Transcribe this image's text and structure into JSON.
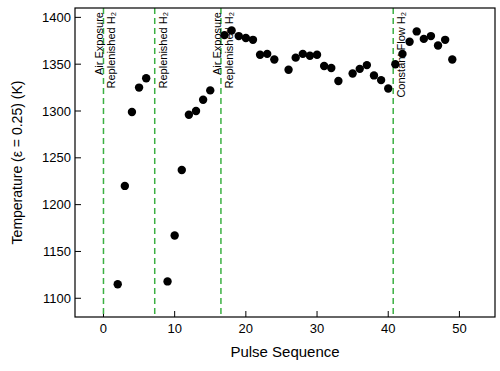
{
  "chart_data": {
    "type": "scatter",
    "x_label": "Pulse Sequence",
    "y_label": "Temperature (ε = 0.25) (K)",
    "x": [
      2,
      3,
      4,
      5,
      6,
      9,
      10,
      11,
      12,
      13,
      14,
      15,
      17,
      18,
      19,
      20,
      21,
      22,
      23,
      24,
      26,
      27,
      28,
      29,
      30,
      31,
      32,
      33,
      35,
      36,
      37,
      38,
      39,
      40,
      41,
      42,
      43,
      44,
      45,
      46,
      47,
      48,
      49
    ],
    "values": [
      1115,
      1220,
      1299,
      1325,
      1335,
      1118,
      1167,
      1237,
      1296,
      1300,
      1312,
      1322,
      1381,
      1386,
      1380,
      1378,
      1376,
      1360,
      1361,
      1355,
      1344,
      1357,
      1361,
      1359,
      1360,
      1348,
      1346,
      1332,
      1340,
      1345,
      1349,
      1338,
      1333,
      1324,
      1350,
      1361,
      1374,
      1385,
      1377,
      1380,
      1370,
      1376,
      1355
    ],
    "color": "#000000",
    "marker": "circle",
    "xlim": [
      -4,
      55
    ],
    "xticks": [
      0,
      10,
      20,
      30,
      40,
      50
    ],
    "ylim": [
      1080,
      1410
    ],
    "yticks": [
      1100,
      1150,
      1200,
      1250,
      1300,
      1350,
      1400
    ],
    "annotations": [
      {
        "x": 0,
        "lines": [
          "Air Exposure",
          "Replenished H₂"
        ],
        "color": "#3cb043",
        "line_style": "dashed"
      },
      {
        "x": 7.2,
        "lines": [
          "Replenished H₂"
        ],
        "color": "#3cb043",
        "line_style": "dashed"
      },
      {
        "x": 16.5,
        "lines": [
          "Air Exposure",
          "Replenished H₂"
        ],
        "color": "#3cb043",
        "line_style": "dashed"
      },
      {
        "x": 40.7,
        "lines": [
          "Constant Flow H₂"
        ],
        "color": "#3cb043",
        "line_style": "dashed"
      }
    ]
  }
}
